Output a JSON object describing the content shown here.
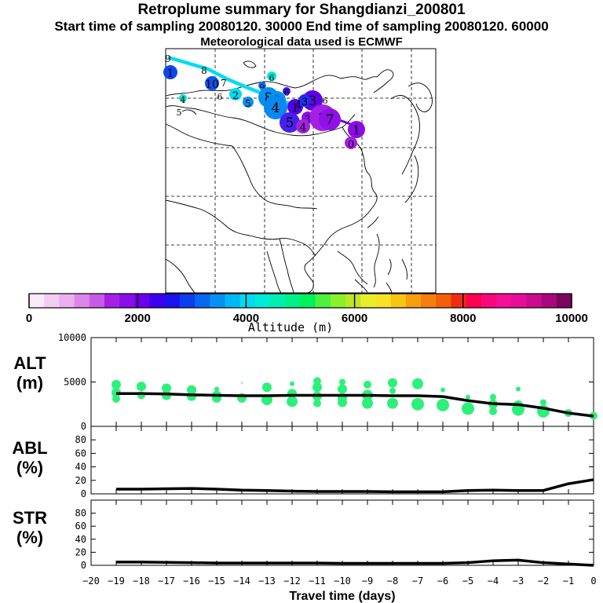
{
  "title": "Retroplume summary for Shangdianzi_200801",
  "subtitle": "Start time of sampling 20080120. 30000     End time of sampling 20080120. 60000",
  "meteo_line": "Meteorological data used is ECMWF",
  "colorbar": {
    "label": "Altitude (m)",
    "ticks": [
      "0",
      "2000",
      "4000",
      "6000",
      "8000",
      "10000"
    ],
    "range": [
      0,
      10000
    ],
    "colors": [
      "#fbe8fb",
      "#f3ccf3",
      "#eab0f0",
      "#dc86ec",
      "#c85ae8",
      "#a520e5",
      "#8a0ce6",
      "#6c00ea",
      "#3b00ed",
      "#1812ee",
      "#0b3ef0",
      "#0867f0",
      "#0690f3",
      "#00b9f2",
      "#00dbef",
      "#00ebd8",
      "#00efae",
      "#00f088",
      "#00f15b",
      "#4cf23c",
      "#88f12a",
      "#bde62a",
      "#e7ef2a",
      "#f6e323",
      "#f6c614",
      "#f69f0f",
      "#f57f0c",
      "#f25e0a",
      "#ef2d14",
      "#ff0050",
      "#f8087a",
      "#f40f96",
      "#e60d9a",
      "#c90b8e",
      "#a9087c",
      "#7a0560"
    ]
  },
  "map": {
    "markers": [
      {
        "label": "9",
        "color": "#00dcf2"
      },
      {
        "label": "8",
        "color": "#00dcf2"
      },
      {
        "label": "1",
        "color": "#0a46f0"
      },
      {
        "label": "10",
        "color": "#0a52f0"
      },
      {
        "label": "7",
        "color": "#0a62f0"
      },
      {
        "label": "6",
        "color": "#00e6d8"
      },
      {
        "label": "6",
        "color": "#0870f0"
      },
      {
        "label": "9",
        "color": "#0878f0"
      },
      {
        "label": "2",
        "color": "#00dcf2"
      },
      {
        "label": "4",
        "color": "#00e6d0"
      },
      {
        "label": "5",
        "color": "#00e6d0"
      },
      {
        "label": "5",
        "color": "#0890f3"
      },
      {
        "label": "8",
        "color": "#0890f3"
      },
      {
        "label": "2",
        "color": "#0890f3"
      },
      {
        "label": "4",
        "color": "#0a88f0"
      },
      {
        "label": "6",
        "color": "#4010ee"
      },
      {
        "label": "1",
        "color": "#5000ea"
      },
      {
        "label": "3",
        "color": "#6000ea"
      },
      {
        "label": "5",
        "color": "#4820ee"
      },
      {
        "label": "3",
        "color": "#9010e8"
      },
      {
        "label": "4",
        "color": "#a520e5"
      },
      {
        "label": "2",
        "color": "#a520e5"
      },
      {
        "label": "7",
        "color": "#9010e8"
      },
      {
        "label": "1",
        "color": "#8a0ce6"
      },
      {
        "label": "0",
        "color": "#a520e5"
      },
      {
        "label": "3",
        "color": "#2030ee"
      },
      {
        "label": "4",
        "color": "#1818ee"
      },
      {
        "label": "6",
        "color": "#2828ee"
      }
    ]
  },
  "chart_data": [
    {
      "type": "scatter",
      "name": "ALT (m)",
      "ylabel": "ALT\n(m)",
      "ylabel_lines": [
        "ALT",
        "(m)"
      ],
      "xlabel": "Travel time (days)",
      "xlim": [
        -20,
        0
      ],
      "ylim": [
        0,
        10000
      ],
      "yticks": [
        "0",
        "5000",
        "10000"
      ],
      "xticks": [
        "−20",
        "−19",
        "−18",
        "−17",
        "−16",
        "−15",
        "−14",
        "−13",
        "−12",
        "−11",
        "−10",
        "−9",
        "−8",
        "−7",
        "−6",
        "−5",
        "−4",
        "−3",
        "−2",
        "−1",
        "0"
      ],
      "mean_line": {
        "x": [
          -19,
          -18,
          -17,
          -16,
          -15,
          -14,
          -13,
          -12,
          -11,
          -10,
          -9,
          -8,
          -7,
          -6,
          -5,
          -4,
          -3,
          -2,
          -1,
          0
        ],
        "y": [
          3700,
          3700,
          3650,
          3550,
          3500,
          3450,
          3450,
          3500,
          3500,
          3500,
          3500,
          3450,
          3450,
          3350,
          2900,
          2550,
          2450,
          2050,
          1500,
          1150
        ]
      },
      "scatter": {
        "x": [
          -19,
          -19,
          -19,
          -18,
          -18,
          -17,
          -17,
          -16,
          -16,
          -15,
          -15,
          -15,
          -14,
          -14,
          -13,
          -13,
          -12,
          -12,
          -12,
          -11,
          -11,
          -11,
          -11,
          -10,
          -10,
          -10,
          -10,
          -9,
          -9,
          -9,
          -8,
          -8,
          -8,
          -7,
          -7,
          -6,
          -6,
          -5,
          -5,
          -4,
          -4,
          -4,
          -3,
          -3,
          -3,
          -2,
          -2,
          -1,
          0
        ],
        "y": [
          4700,
          3800,
          3100,
          4500,
          3500,
          4300,
          3500,
          4100,
          3400,
          4200,
          3500,
          3200,
          4900,
          3200,
          4400,
          3000,
          4800,
          3700,
          2800,
          5100,
          4400,
          3400,
          2600,
          5000,
          4200,
          3200,
          2700,
          4700,
          3500,
          2600,
          4900,
          4000,
          2600,
          4800,
          2500,
          4100,
          2400,
          3300,
          2000,
          3300,
          2500,
          1700,
          4200,
          2400,
          1900,
          2700,
          1700,
          1500,
          1200
        ],
        "size": [
          6,
          6,
          5,
          6,
          5,
          6,
          6,
          6,
          6,
          3,
          6,
          6,
          1,
          6,
          6,
          7,
          3,
          6,
          7,
          5,
          6,
          6,
          5,
          4,
          6,
          6,
          6,
          5,
          7,
          7,
          6,
          4,
          7,
          7,
          8,
          3,
          8,
          3,
          8,
          4,
          6,
          5,
          3,
          6,
          8,
          4,
          8,
          5,
          5
        ]
      },
      "marker_color": "#2df07a"
    },
    {
      "type": "line",
      "name": "ABL (%)",
      "ylabel_lines": [
        "ABL",
        "(%)"
      ],
      "xlim": [
        -20,
        0
      ],
      "ylim": [
        0,
        100
      ],
      "yticks": [
        "0",
        "20",
        "40",
        "60",
        "80"
      ],
      "x": [
        -19,
        -18,
        -17,
        -16,
        -15,
        -14,
        -13,
        -12,
        -11,
        -10,
        -9,
        -8,
        -7,
        -6,
        -5,
        -4,
        -3,
        -2,
        -1,
        0
      ],
      "y": [
        7,
        7,
        7.5,
        8,
        7,
        5.5,
        5,
        4,
        3.5,
        3.5,
        3.5,
        3,
        3,
        3,
        5,
        5.5,
        5,
        5,
        15,
        21
      ]
    },
    {
      "type": "line",
      "name": "STR (%)",
      "ylabel_lines": [
        "STR",
        "(%)"
      ],
      "xlabel": "Travel time (days)",
      "xlim": [
        -20,
        0
      ],
      "ylim": [
        0,
        100
      ],
      "yticks": [
        "0",
        "20",
        "40",
        "60",
        "80"
      ],
      "xticks": [
        "−20",
        "−19",
        "−18",
        "−17",
        "−16",
        "−15",
        "−14",
        "−13",
        "−12",
        "−11",
        "−10",
        "−9",
        "−8",
        "−7",
        "−6",
        "−5",
        "−4",
        "−3",
        "−2",
        "−1",
        "0"
      ],
      "x": [
        -19,
        -18,
        -17,
        -16,
        -15,
        -14,
        -13,
        -12,
        -11,
        -10,
        -9,
        -8,
        -7,
        -6,
        -5,
        -4,
        -3,
        -2,
        -1,
        0
      ],
      "y": [
        5,
        5,
        4.5,
        4,
        3.5,
        3.5,
        3.5,
        3.5,
        3.5,
        3,
        3,
        3,
        3,
        3,
        4,
        7,
        8,
        4,
        2,
        0
      ]
    }
  ]
}
